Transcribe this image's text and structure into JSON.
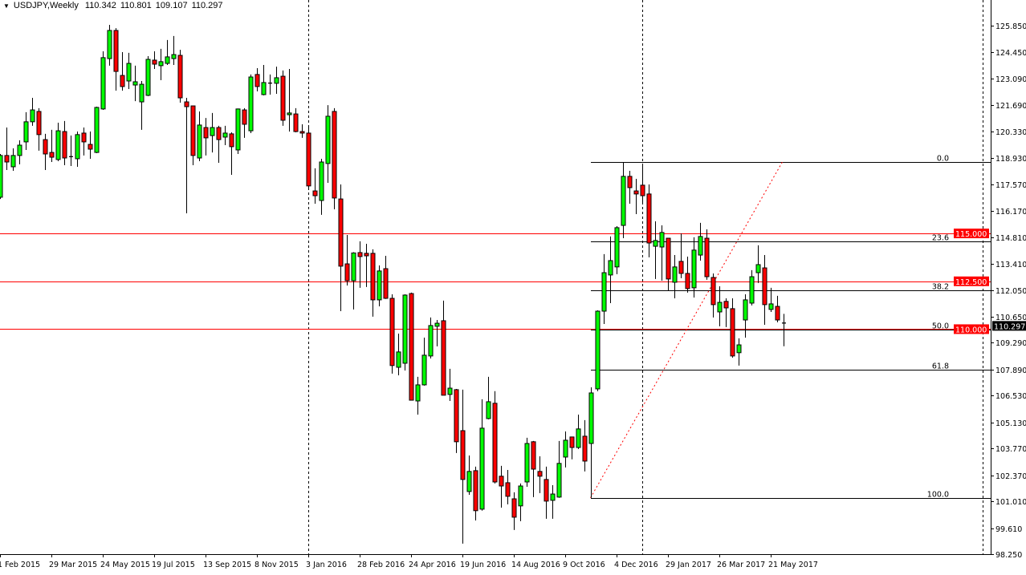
{
  "header": {
    "menu_icon": "triangle-down-icon",
    "symbol_period": "USDJPY,Weekly",
    "open": "110.342",
    "high": "110.801",
    "low": "109.107",
    "close": "110.297"
  },
  "colors": {
    "bull": "#00ff00",
    "bear": "#ff0000",
    "outline": "#000000",
    "level_line": "#ff0000",
    "fib_line": "#000000",
    "trendline": "#ff0000",
    "current_price_tag": "#000000"
  },
  "chart_data": {
    "type": "candlestick",
    "symbol": "USDJPY",
    "period": "Weekly",
    "first_bar_date": "1 Feb 2015",
    "ylim": [
      98.25,
      125.85
    ],
    "grid": false,
    "y_ticks": [
      "125.850",
      "124.450",
      "123.090",
      "121.690",
      "120.330",
      "118.930",
      "117.570",
      "116.170",
      "114.810",
      "113.410",
      "112.050",
      "110.650",
      "109.290",
      "107.890",
      "106.530",
      "105.130",
      "103.770",
      "102.370",
      "101.010",
      "99.610",
      "98.250"
    ],
    "x_labels": [
      {
        "bar": 0,
        "label": "1 Feb 2015"
      },
      {
        "bar": 8,
        "label": "29 Mar 2015"
      },
      {
        "bar": 16,
        "label": "24 May 2015"
      },
      {
        "bar": 24,
        "label": "19 Jul 2015"
      },
      {
        "bar": 32,
        "label": "13 Sep 2015"
      },
      {
        "bar": 40,
        "label": "8 Nov 2015"
      },
      {
        "bar": 48,
        "label": "3 Jan 2016"
      },
      {
        "bar": 56,
        "label": "28 Feb 2016"
      },
      {
        "bar": 64,
        "label": "24 Apr 2016"
      },
      {
        "bar": 72,
        "label": "19 Jun 2016"
      },
      {
        "bar": 80,
        "label": "14 Aug 2016"
      },
      {
        "bar": 88,
        "label": "9 Oct 2016"
      },
      {
        "bar": 96,
        "label": "4 Dec 2016"
      },
      {
        "bar": 104,
        "label": "29 Jan 2017"
      },
      {
        "bar": 112,
        "label": "26 Mar 2017"
      },
      {
        "bar": 120,
        "label": "21 May 2017"
      }
    ],
    "candles_ohlc": [
      [
        116.89,
        119.15,
        116.8,
        119.07
      ],
      [
        119.07,
        120.53,
        118.31,
        118.73
      ],
      [
        118.48,
        119.44,
        118.27,
        119.07
      ],
      [
        119.07,
        119.86,
        118.61,
        119.61
      ],
      [
        119.78,
        121.33,
        119.36,
        120.83
      ],
      [
        120.83,
        122.08,
        120.62,
        121.45
      ],
      [
        121.37,
        121.54,
        119.32,
        120.16
      ],
      [
        119.9,
        120.2,
        118.31,
        119.15
      ],
      [
        119.23,
        120.41,
        118.73,
        118.98
      ],
      [
        118.86,
        120.78,
        118.77,
        120.36
      ],
      [
        120.32,
        120.87,
        118.56,
        118.94
      ],
      [
        119.02,
        120.11,
        118.52,
        119.0
      ],
      [
        118.9,
        120.32,
        118.48,
        120.16
      ],
      [
        120.24,
        120.53,
        119.07,
        119.78
      ],
      [
        119.65,
        120.32,
        118.9,
        119.4
      ],
      [
        119.23,
        121.62,
        119.19,
        121.58
      ],
      [
        121.5,
        124.51,
        121.45,
        124.18
      ],
      [
        124.13,
        125.89,
        123.76,
        125.6
      ],
      [
        125.6,
        125.72,
        122.46,
        123.46
      ],
      [
        123.25,
        124.47,
        122.46,
        122.67
      ],
      [
        122.96,
        124.43,
        122.54,
        123.88
      ],
      [
        122.75,
        123.76,
        121.91,
        122.92
      ],
      [
        121.87,
        122.96,
        120.41,
        122.79
      ],
      [
        122.21,
        124.26,
        122.17,
        124.09
      ],
      [
        124.05,
        124.51,
        123.59,
        123.84
      ],
      [
        123.76,
        124.64,
        123.0,
        123.97
      ],
      [
        123.88,
        125.1,
        123.8,
        124.22
      ],
      [
        124.13,
        125.31,
        123.8,
        124.34
      ],
      [
        124.3,
        124.59,
        121.83,
        122.08
      ],
      [
        121.87,
        122.08,
        116.05,
        121.62
      ],
      [
        121.66,
        121.66,
        118.56,
        119.07
      ],
      [
        118.94,
        121.37,
        118.77,
        120.66
      ],
      [
        120.53,
        121.03,
        119.07,
        119.99
      ],
      [
        120.11,
        121.29,
        119.23,
        120.53
      ],
      [
        120.53,
        120.62,
        118.69,
        119.9
      ],
      [
        120.03,
        120.62,
        119.61,
        120.24
      ],
      [
        120.2,
        120.28,
        118.06,
        119.53
      ],
      [
        119.36,
        121.52,
        119.15,
        121.5
      ],
      [
        121.45,
        121.54,
        119.99,
        120.7
      ],
      [
        120.36,
        123.3,
        120.24,
        123.17
      ],
      [
        123.3,
        123.63,
        122.42,
        122.67
      ],
      [
        122.25,
        123.8,
        122.21,
        122.88
      ],
      [
        122.84,
        123.3,
        122.25,
        122.86
      ],
      [
        122.84,
        123.71,
        122.29,
        123.13
      ],
      [
        123.21,
        123.51,
        120.62,
        120.91
      ],
      [
        121.2,
        123.59,
        120.32,
        121.29
      ],
      [
        121.24,
        121.54,
        120.28,
        120.32
      ],
      [
        120.32,
        120.7,
        119.99,
        120.24
      ],
      [
        120.24,
        120.53,
        117.31,
        117.48
      ],
      [
        117.22,
        118.4,
        116.55,
        116.97
      ],
      [
        116.72,
        118.9,
        115.97,
        118.73
      ],
      [
        118.65,
        121.7,
        117.64,
        121.12
      ],
      [
        121.37,
        121.54,
        116.26,
        116.85
      ],
      [
        116.8,
        117.56,
        110.94,
        113.29
      ],
      [
        113.41,
        114.92,
        112.28,
        112.53
      ],
      [
        112.53,
        114.02,
        111.03,
        113.98
      ],
      [
        114.0,
        114.59,
        112.16,
        113.79
      ],
      [
        113.96,
        114.46,
        112.2,
        113.83
      ],
      [
        113.96,
        114.17,
        110.65,
        111.53
      ],
      [
        111.53,
        113.33,
        111.19,
        113.04
      ],
      [
        113.16,
        113.83,
        111.58,
        111.61
      ],
      [
        111.61,
        111.82,
        107.68,
        108.1
      ],
      [
        108.01,
        109.77,
        107.59,
        108.81
      ],
      [
        108.22,
        111.82,
        107.84,
        111.78
      ],
      [
        111.86,
        111.91,
        106.27,
        106.29
      ],
      [
        106.25,
        107.51,
        105.54,
        107.09
      ],
      [
        107.09,
        109.56,
        107.05,
        108.64
      ],
      [
        108.6,
        110.61,
        108.47,
        110.19
      ],
      [
        110.15,
        110.48,
        109.1,
        110.31
      ],
      [
        110.44,
        111.49,
        106.55,
        106.55
      ],
      [
        106.59,
        107.93,
        106.25,
        106.92
      ],
      [
        106.84,
        106.88,
        103.53,
        104.12
      ],
      [
        104.7,
        106.84,
        98.8,
        102.15
      ],
      [
        101.52,
        103.4,
        101.35,
        102.57
      ],
      [
        102.61,
        102.82,
        100.01,
        100.52
      ],
      [
        100.6,
        106.34,
        100.52,
        104.83
      ],
      [
        105.33,
        107.51,
        105.29,
        106.21
      ],
      [
        106.13,
        106.76,
        101.94,
        102.02
      ],
      [
        102.32,
        102.86,
        100.68,
        101.81
      ],
      [
        101.98,
        102.65,
        100.85,
        101.27
      ],
      [
        101.14,
        101.48,
        99.51,
        100.18
      ],
      [
        100.77,
        101.94,
        99.97,
        101.81
      ],
      [
        102.02,
        104.33,
        101.77,
        104.03
      ],
      [
        104.12,
        104.16,
        101.23,
        102.69
      ],
      [
        102.57,
        103.36,
        101.44,
        102.32
      ],
      [
        102.15,
        102.82,
        100.1,
        101.02
      ],
      [
        101.06,
        101.85,
        100.1,
        101.39
      ],
      [
        101.23,
        104.16,
        101.19,
        102.99
      ],
      [
        103.32,
        104.66,
        102.78,
        104.2
      ],
      [
        104.37,
        104.37,
        103.2,
        103.82
      ],
      [
        103.82,
        105.54,
        103.74,
        104.79
      ],
      [
        104.41,
        105.25,
        102.57,
        103.11
      ],
      [
        104.03,
        106.96,
        101.19,
        106.67
      ],
      [
        106.88,
        110.98,
        106.76,
        110.94
      ],
      [
        110.94,
        113.92,
        110.27,
        112.95
      ],
      [
        112.83,
        114.84,
        111.36,
        113.58
      ],
      [
        113.25,
        115.38,
        112.87,
        115.3
      ],
      [
        115.42,
        118.73,
        114.75,
        117.98
      ],
      [
        117.98,
        118.27,
        116.55,
        117.39
      ],
      [
        117.22,
        117.85,
        116.01,
        117.06
      ],
      [
        117.52,
        118.6,
        116.51,
        116.97
      ],
      [
        117.06,
        117.56,
        113.75,
        114.5
      ],
      [
        114.33,
        115.63,
        112.62,
        114.63
      ],
      [
        114.29,
        115.42,
        112.53,
        115.05
      ],
      [
        114.75,
        114.75,
        112.03,
        112.62
      ],
      [
        112.45,
        113.87,
        111.61,
        113.25
      ],
      [
        113.54,
        115.0,
        112.66,
        112.91
      ],
      [
        112.91,
        113.79,
        111.91,
        112.12
      ],
      [
        112.16,
        114.8,
        111.65,
        114.13
      ],
      [
        113.87,
        115.55,
        113.58,
        114.84
      ],
      [
        114.75,
        115.21,
        112.58,
        112.74
      ],
      [
        112.7,
        112.91,
        110.61,
        111.28
      ],
      [
        110.9,
        112.24,
        110.15,
        111.4
      ],
      [
        111.45,
        111.61,
        110.11,
        111.11
      ],
      [
        111.07,
        111.61,
        108.51,
        108.6
      ],
      [
        108.77,
        109.52,
        108.1,
        109.18
      ],
      [
        110.48,
        111.82,
        109.56,
        111.53
      ],
      [
        111.36,
        113.08,
        111.24,
        112.74
      ],
      [
        112.95,
        114.38,
        112.41,
        113.37
      ],
      [
        113.2,
        113.87,
        110.23,
        111.28
      ],
      [
        111.03,
        112.16,
        110.9,
        111.32
      ],
      [
        111.19,
        111.74,
        110.36,
        110.48
      ],
      [
        110.342,
        110.801,
        109.107,
        110.297
      ]
    ],
    "horizontal_levels": [
      {
        "price": 115.0,
        "label": "115.000"
      },
      {
        "price": 112.5,
        "label": "112.500"
      },
      {
        "price": 110.0,
        "label": "110.000"
      }
    ],
    "current_price": {
      "price": 110.297,
      "label": "110.297"
    },
    "period_separators": [
      "3 Jan 2016",
      "1 Jan 2017"
    ],
    "fibonacci": {
      "anchor_bar": 92,
      "high": 118.73,
      "low": 101.19,
      "levels": [
        {
          "ratio": 0.0,
          "label": "0.0"
        },
        {
          "ratio": 0.236,
          "label": "23.6"
        },
        {
          "ratio": 0.382,
          "label": "38.2"
        },
        {
          "ratio": 0.5,
          "label": "50.0"
        },
        {
          "ratio": 0.618,
          "label": "61.8"
        },
        {
          "ratio": 1.0,
          "label": "100.0"
        }
      ],
      "trendline": {
        "from_bar": 92,
        "from_price": 101.19,
        "to_bar": 121,
        "to_price": 118.73,
        "style": "dotted"
      }
    }
  }
}
